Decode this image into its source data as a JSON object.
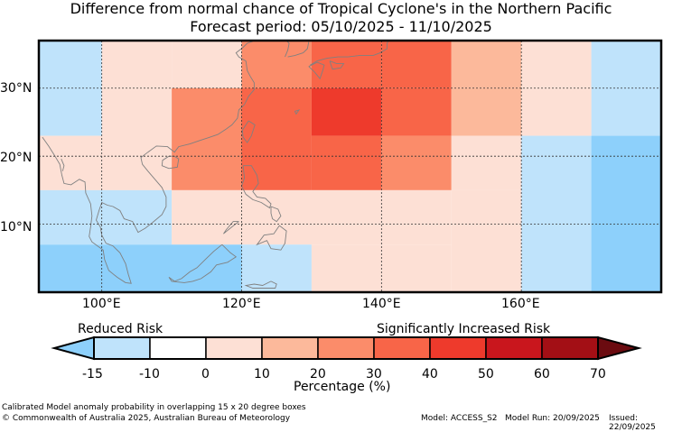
{
  "title": {
    "line1": "Difference from normal chance of Tropical Cyclone's in the Northern Pacific",
    "line2": "Forecast period: 05/10/2025 - 11/10/2025"
  },
  "map": {
    "lat_labels": [
      "30°N",
      "20°N",
      "10°N"
    ],
    "lon_labels": [
      "100°E",
      "120°E",
      "140°E",
      "160°E"
    ],
    "bounds": {
      "lon_min": 91,
      "lon_max": 180,
      "lat_min": 0,
      "lat_max": 37
    },
    "grid_lons": [
      100,
      120,
      140,
      160
    ],
    "grid_lats": [
      30,
      20,
      10
    ],
    "cells": [
      {
        "lon0": 91,
        "lon1": 100,
        "lat0": 23,
        "lat1": 37,
        "value": -12
      },
      {
        "lon0": 100,
        "lon1": 110,
        "lat0": 30,
        "lat1": 37,
        "value": 0
      },
      {
        "lon0": 110,
        "lon1": 120,
        "lat0": 30,
        "lat1": 37,
        "value": 5
      },
      {
        "lon0": 120,
        "lon1": 130,
        "lat0": 30,
        "lat1": 37,
        "value": 25
      },
      {
        "lon0": 130,
        "lon1": 140,
        "lat0": 30,
        "lat1": 37,
        "value": 35
      },
      {
        "lon0": 140,
        "lon1": 150,
        "lat0": 30,
        "lat1": 37,
        "value": 35
      },
      {
        "lon0": 150,
        "lon1": 160,
        "lat0": 30,
        "lat1": 37,
        "value": 15
      },
      {
        "lon0": 160,
        "lon1": 170,
        "lat0": 30,
        "lat1": 37,
        "value": 0
      },
      {
        "lon0": 170,
        "lon1": 180,
        "lat0": 23,
        "lat1": 37,
        "value": -12
      },
      {
        "lon0": 100,
        "lon1": 110,
        "lat0": 15,
        "lat1": 30,
        "value": 5
      },
      {
        "lon0": 110,
        "lon1": 120,
        "lat0": 15,
        "lat1": 30,
        "value": 25
      },
      {
        "lon0": 120,
        "lon1": 130,
        "lat0": 15,
        "lat1": 30,
        "value": 35
      },
      {
        "lon0": 130,
        "lon1": 140,
        "lat0": 23,
        "lat1": 30,
        "value": 45
      },
      {
        "lon0": 140,
        "lon1": 150,
        "lat0": 23,
        "lat1": 30,
        "value": 35
      },
      {
        "lon0": 150,
        "lon1": 160,
        "lat0": 23,
        "lat1": 30,
        "value": 15
      },
      {
        "lon0": 160,
        "lon1": 170,
        "lat0": 23,
        "lat1": 30,
        "value": 0
      },
      {
        "lon0": 130,
        "lon1": 140,
        "lat0": 15,
        "lat1": 23,
        "value": 35
      },
      {
        "lon0": 140,
        "lon1": 150,
        "lat0": 15,
        "lat1": 23,
        "value": 25
      },
      {
        "lon0": 150,
        "lon1": 160,
        "lat0": 15,
        "lat1": 23,
        "value": 5
      },
      {
        "lon0": 160,
        "lon1": 170,
        "lat0": 0,
        "lat1": 23,
        "value": -12
      },
      {
        "lon0": 170,
        "lon1": 180,
        "lat0": 0,
        "lat1": 23,
        "value": -18
      },
      {
        "lon0": 91,
        "lon1": 100,
        "lat0": 15,
        "lat1": 23,
        "value": 0
      },
      {
        "lon0": 91,
        "lon1": 110,
        "lat0": 7,
        "lat1": 15,
        "value": -12
      },
      {
        "lon0": 110,
        "lon1": 150,
        "lat0": 7,
        "lat1": 15,
        "value": 5
      },
      {
        "lon0": 150,
        "lon1": 160,
        "lat0": 0,
        "lat1": 15,
        "value": 0
      },
      {
        "lon0": 91,
        "lon1": 120,
        "lat0": 0,
        "lat1": 7,
        "value": -18
      },
      {
        "lon0": 120,
        "lon1": 130,
        "lat0": 0,
        "lat1": 7,
        "value": -12
      },
      {
        "lon0": 130,
        "lon1": 150,
        "lat0": 0,
        "lat1": 7,
        "value": 0
      }
    ],
    "coast_lines": [
      [
        [
          91.5,
          22.8
        ],
        [
          92.4,
          21.5
        ],
        [
          93.2,
          20.2
        ],
        [
          94.0,
          18.8
        ],
        [
          94.3,
          17.2
        ],
        [
          94.6,
          16.0
        ],
        [
          95.6,
          15.8
        ],
        [
          96.8,
          16.6
        ],
        [
          97.6,
          16.2
        ],
        [
          97.7,
          14.6
        ],
        [
          98.4,
          13.0
        ],
        [
          98.6,
          11.2
        ],
        [
          98.4,
          9.6
        ],
        [
          98.2,
          8.2
        ],
        [
          98.6,
          7.4
        ],
        [
          100.2,
          6.2
        ],
        [
          100.4,
          4.8
        ],
        [
          101.0,
          3.2
        ],
        [
          102.2,
          2.2
        ],
        [
          103.4,
          1.4
        ],
        [
          104.2,
          1.3
        ],
        [
          103.8,
          2.6
        ],
        [
          103.4,
          4.2
        ],
        [
          102.6,
          5.8
        ],
        [
          101.6,
          6.8
        ],
        [
          100.6,
          7.2
        ],
        [
          100.0,
          8.4
        ],
        [
          99.8,
          9.6
        ],
        [
          99.2,
          10.6
        ],
        [
          99.6,
          12.0
        ],
        [
          100.0,
          13.2
        ],
        [
          100.8,
          12.8
        ],
        [
          101.6,
          12.6
        ],
        [
          102.6,
          12.0
        ],
        [
          103.2,
          10.8
        ],
        [
          104.4,
          10.4
        ],
        [
          105.2,
          8.8
        ],
        [
          106.2,
          9.4
        ],
        [
          107.2,
          10.2
        ],
        [
          108.6,
          11.4
        ],
        [
          109.2,
          12.6
        ],
        [
          109.2,
          14.0
        ],
        [
          108.6,
          15.4
        ],
        [
          107.6,
          16.6
        ],
        [
          106.6,
          17.8
        ],
        [
          105.8,
          18.8
        ],
        [
          105.6,
          19.8
        ],
        [
          106.6,
          20.6
        ],
        [
          107.8,
          21.5
        ],
        [
          109.4,
          21.4
        ],
        [
          110.4,
          20.6
        ],
        [
          111.0,
          21.4
        ],
        [
          112.6,
          21.8
        ],
        [
          114.0,
          22.3
        ],
        [
          115.2,
          22.7
        ],
        [
          116.6,
          23.2
        ],
        [
          117.8,
          24.0
        ],
        [
          118.6,
          24.6
        ],
        [
          119.4,
          25.6
        ],
        [
          119.6,
          26.8
        ],
        [
          120.4,
          27.6
        ],
        [
          121.0,
          28.8
        ],
        [
          121.8,
          29.8
        ],
        [
          121.8,
          30.8
        ],
        [
          121.2,
          31.8
        ],
        [
          120.8,
          32.6
        ],
        [
          120.6,
          34.0
        ],
        [
          119.6,
          34.6
        ],
        [
          119.2,
          35.2
        ],
        [
          120.2,
          36.0
        ],
        [
          120.8,
          36.6
        ],
        [
          121.6,
          36.9
        ]
      ],
      [
        [
          110.4,
          20.0
        ],
        [
          111.0,
          19.6
        ],
        [
          110.8,
          18.4
        ],
        [
          109.6,
          18.2
        ],
        [
          108.6,
          18.6
        ],
        [
          108.7,
          19.4
        ],
        [
          109.6,
          20.0
        ],
        [
          110.4,
          20.0
        ]
      ],
      [
        [
          121.0,
          25.2
        ],
        [
          121.9,
          24.6
        ],
        [
          121.4,
          23.0
        ],
        [
          120.8,
          22.0
        ],
        [
          120.2,
          22.8
        ],
        [
          120.1,
          23.8
        ],
        [
          120.6,
          24.6
        ],
        [
          121.0,
          25.2
        ]
      ],
      [
        [
          120.2,
          18.6
        ],
        [
          121.4,
          18.6
        ],
        [
          122.2,
          17.2
        ],
        [
          122.4,
          16.0
        ],
        [
          121.6,
          14.8
        ],
        [
          122.2,
          14.0
        ],
        [
          123.4,
          13.8
        ],
        [
          124.2,
          13.0
        ],
        [
          124.0,
          12.4
        ],
        [
          122.8,
          13.2
        ],
        [
          121.6,
          13.6
        ],
        [
          120.6,
          14.4
        ],
        [
          120.0,
          15.6
        ],
        [
          120.4,
          16.8
        ],
        [
          120.2,
          18.6
        ]
      ],
      [
        [
          124.2,
          12.6
        ],
        [
          125.2,
          12.2
        ],
        [
          125.6,
          11.2
        ],
        [
          125.0,
          10.4
        ],
        [
          124.4,
          10.8
        ],
        [
          124.2,
          11.6
        ],
        [
          124.2,
          12.6
        ]
      ],
      [
        [
          125.4,
          9.8
        ],
        [
          126.4,
          9.0
        ],
        [
          126.2,
          7.2
        ],
        [
          125.6,
          6.2
        ],
        [
          124.2,
          6.4
        ],
        [
          123.6,
          7.6
        ],
        [
          122.2,
          7.0
        ],
        [
          123.2,
          8.4
        ],
        [
          124.6,
          8.6
        ],
        [
          125.4,
          9.8
        ]
      ],
      [
        [
          119.6,
          10.4
        ],
        [
          118.6,
          9.6
        ],
        [
          117.4,
          8.6
        ],
        [
          117.8,
          9.2
        ],
        [
          118.8,
          10.4
        ],
        [
          119.6,
          10.4
        ]
      ],
      [
        [
          117.2,
          7.0
        ],
        [
          118.4,
          5.8
        ],
        [
          119.2,
          5.2
        ],
        [
          118.0,
          4.4
        ],
        [
          116.4,
          4.0
        ],
        [
          115.6,
          3.0
        ],
        [
          114.2,
          2.0
        ],
        [
          113.0,
          1.6
        ],
        [
          111.8,
          1.4
        ],
        [
          110.0,
          1.6
        ],
        [
          109.6,
          2.2
        ],
        [
          110.4,
          1.6
        ],
        [
          111.4,
          2.0
        ],
        [
          112.6,
          3.0
        ],
        [
          113.6,
          3.6
        ],
        [
          114.8,
          4.8
        ],
        [
          116.0,
          6.0
        ],
        [
          117.2,
          7.0
        ]
      ],
      [
        [
          124.2,
          1.6
        ],
        [
          125.0,
          1.2
        ],
        [
          124.8,
          0.6
        ],
        [
          123.4,
          0.6
        ],
        [
          121.6,
          0.6
        ],
        [
          120.6,
          1.0
        ],
        [
          121.8,
          1.2
        ],
        [
          123.0,
          1.0
        ],
        [
          124.2,
          1.6
        ]
      ],
      [
        [
          129.8,
          33.4
        ],
        [
          130.8,
          34.0
        ],
        [
          132.2,
          34.4
        ],
        [
          133.8,
          34.6
        ],
        [
          135.2,
          34.6
        ],
        [
          136.8,
          34.8
        ],
        [
          138.8,
          34.8
        ],
        [
          139.8,
          35.2
        ],
        [
          140.8,
          35.8
        ],
        [
          140.8,
          36.6
        ],
        [
          141.0,
          37.0
        ]
      ],
      [
        [
          129.6,
          33.2
        ],
        [
          130.4,
          32.4
        ],
        [
          131.2,
          31.4
        ],
        [
          131.6,
          32.6
        ],
        [
          131.8,
          33.4
        ],
        [
          130.8,
          33.8
        ],
        [
          129.6,
          33.2
        ]
      ],
      [
        [
          132.6,
          34.0
        ],
        [
          133.6,
          33.6
        ],
        [
          134.6,
          33.6
        ],
        [
          134.2,
          33.0
        ],
        [
          133.0,
          32.8
        ],
        [
          132.6,
          34.0
        ]
      ],
      [
        [
          126.6,
          34.6
        ],
        [
          127.6,
          34.8
        ],
        [
          128.8,
          35.2
        ],
        [
          129.4,
          35.8
        ],
        [
          129.6,
          36.8
        ]
      ],
      [
        [
          126.2,
          34.6
        ],
        [
          126.6,
          35.6
        ],
        [
          126.8,
          36.6
        ],
        [
          126.4,
          37.0
        ]
      ],
      [
        [
          127.6,
          26.6
        ],
        [
          128.2,
          26.8
        ],
        [
          127.8,
          26.2
        ],
        [
          127.6,
          26.6
        ]
      ],
      [
        [
          94.2,
          19.6
        ],
        [
          94.6,
          18.6
        ],
        [
          94.4,
          17.8
        ]
      ]
    ]
  },
  "colorbar": {
    "left_label": "Reduced Risk",
    "right_label": "Significantly Increased Risk",
    "ticks": [
      "-15",
      "-10",
      "0",
      "10",
      "20",
      "30",
      "40",
      "50",
      "60",
      "70"
    ],
    "bins": [
      {
        "color": "#bfe3fb"
      },
      {
        "color": "#ffffff"
      },
      {
        "color": "#fde0d5"
      },
      {
        "color": "#fcb99b"
      },
      {
        "color": "#fb8c6a"
      },
      {
        "color": "#f86548"
      },
      {
        "color": "#ee3a2c"
      },
      {
        "color": "#c9161d"
      },
      {
        "color": "#a30f15"
      }
    ],
    "under_color": "#8dd0fb",
    "over_color": "#6b0b10",
    "xlabel": "Percentage (%)"
  },
  "footer": {
    "line1": "Calibrated Model anomaly probability in overlapping 15 x 20 degree boxes",
    "copyright": "© Commonwealth of Australia 2025, Australian Bureau of Meteorology",
    "model": "Model: ACCESS_S2",
    "run": "Model Run: 20/09/2025",
    "issued": "Issued: 22/09/2025"
  }
}
